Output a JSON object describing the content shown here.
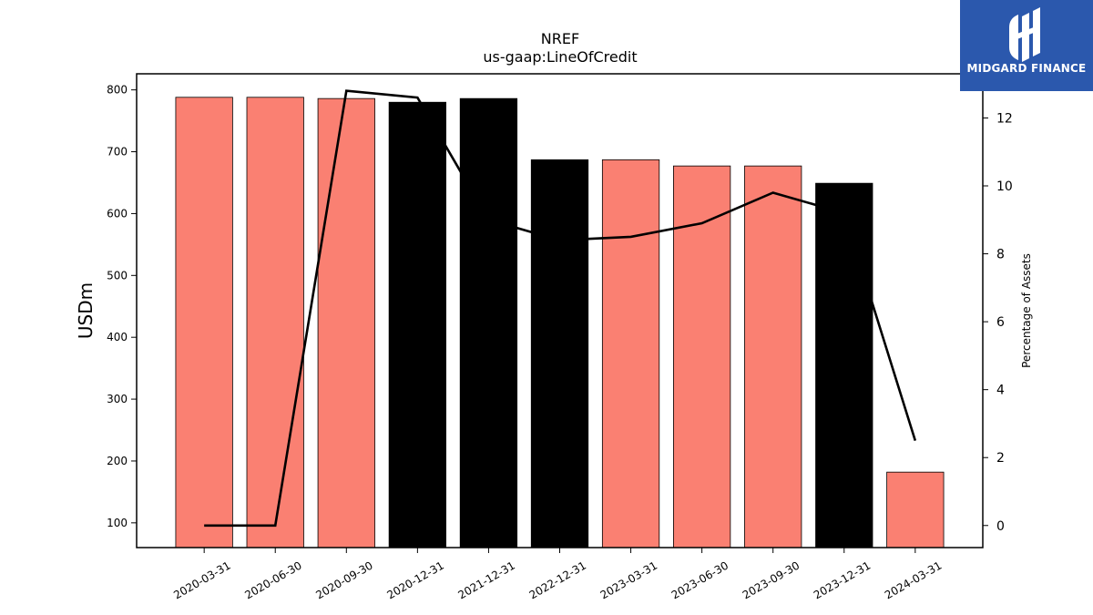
{
  "chart_data": {
    "type": "bar",
    "title": "NREF",
    "subtitle": "us-gaap:LineOfCredit",
    "ylabel": "USDm",
    "y2label": "Percentage of Assets",
    "categories": [
      "2020-03-31",
      "2020-06-30",
      "2020-09-30",
      "2020-12-31",
      "2021-12-31",
      "2022-12-31",
      "2023-03-31",
      "2023-06-30",
      "2023-09-30",
      "2023-12-31",
      "2024-03-31"
    ],
    "values": [
      788,
      788,
      786,
      780,
      786,
      687,
      687,
      677,
      677,
      649,
      182
    ],
    "bar_colors": [
      "#fa8072",
      "#fa8072",
      "#fa8072",
      "#000000",
      "#000000",
      "#000000",
      "#fa8072",
      "#fa8072",
      "#fa8072",
      "#000000",
      "#fa8072"
    ],
    "ylim": [
      60,
      826
    ],
    "yticks": [
      100,
      200,
      300,
      400,
      500,
      600,
      700,
      800
    ],
    "line_series": {
      "values": [
        0.0,
        0.0,
        12.8,
        12.6,
        9.0,
        8.4,
        8.5,
        8.9,
        9.8,
        9.2,
        2.5
      ],
      "color": "#000000"
    },
    "y2lim": [
      -0.65,
      13.3
    ],
    "y2ticks": [
      0,
      2,
      4,
      6,
      8,
      10,
      12
    ],
    "grid": false
  },
  "logo": {
    "text": "MIDGARD FINANCE",
    "background": "#2b58ad"
  }
}
